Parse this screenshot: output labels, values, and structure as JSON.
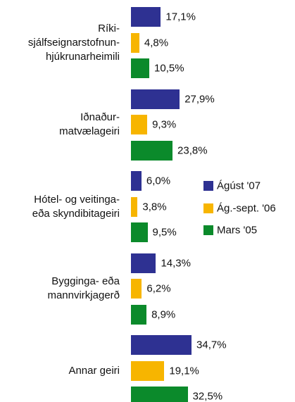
{
  "chart_data": {
    "type": "bar",
    "orientation": "horizontal",
    "categories": [
      "Ríki-\nsjálfseignarstofnun-\nhjúkrunarheimili",
      "Iðnaður-\nmatvælageiri",
      "Hótel- og veitinga-\neða skyndibitageiri",
      "Bygginga- eða\nmannvirkjagerð",
      "Annar geiri"
    ],
    "series": [
      {
        "name": "Ágúst '07",
        "color": "#2e3192",
        "values": [
          17.1,
          27.9,
          6.0,
          14.3,
          34.7
        ],
        "value_labels": [
          "17,1%",
          "27,9%",
          "6,0%",
          "14,3%",
          "34,7%"
        ]
      },
      {
        "name": "Ág.-sept. '06",
        "color": "#f7b500",
        "values": [
          4.8,
          9.3,
          3.8,
          6.2,
          19.1
        ],
        "value_labels": [
          "4,8%",
          "9,3%",
          "3,8%",
          "6,2%",
          "19,1%"
        ]
      },
      {
        "name": "Mars '05",
        "color": "#0b8a2b",
        "values": [
          10.5,
          23.8,
          9.5,
          8.9,
          32.5
        ],
        "value_labels": [
          "10,5%",
          "23,8%",
          "9,5%",
          "8,9%",
          "32,5%"
        ]
      }
    ],
    "legend": "right"
  }
}
